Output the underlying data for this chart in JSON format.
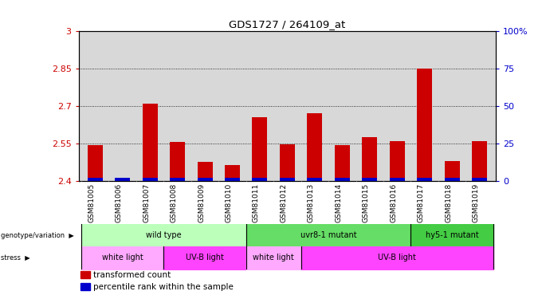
{
  "title": "GDS1727 / 264109_at",
  "samples": [
    "GSM81005",
    "GSM81006",
    "GSM81007",
    "GSM81008",
    "GSM81009",
    "GSM81010",
    "GSM81011",
    "GSM81012",
    "GSM81013",
    "GSM81014",
    "GSM81015",
    "GSM81016",
    "GSM81017",
    "GSM81018",
    "GSM81019"
  ],
  "red_values": [
    2.545,
    2.4,
    2.71,
    2.555,
    2.475,
    2.465,
    2.655,
    2.548,
    2.67,
    2.545,
    2.575,
    2.558,
    2.85,
    2.48,
    2.558
  ],
  "blue_pct": [
    4,
    8,
    8,
    10,
    5,
    5,
    6,
    7,
    7,
    6,
    9,
    7,
    9,
    4,
    6
  ],
  "ymin": 2.4,
  "ymax": 3.0,
  "y_ticks": [
    2.4,
    2.55,
    2.7,
    2.85,
    3.0
  ],
  "y_tick_labels": [
    "2.4",
    "2.55",
    "2.7",
    "2.85",
    "3"
  ],
  "right_y_ticks": [
    0,
    25,
    50,
    75,
    100
  ],
  "right_y_tick_labels": [
    "0",
    "25",
    "50",
    "75",
    "100%"
  ],
  "bar_width": 0.55,
  "red_color": "#cc0000",
  "blue_color": "#0000cc",
  "plot_bg": "#d8d8d8",
  "xtick_bg": "#c0c0c0",
  "geno_spans": [
    {
      "label": "wild type",
      "s": 0,
      "e": 5,
      "color": "#bbffbb"
    },
    {
      "label": "uvr8-1 mutant",
      "s": 6,
      "e": 11,
      "color": "#66dd66"
    },
    {
      "label": "hy5-1 mutant",
      "s": 12,
      "e": 14,
      "color": "#44cc44"
    }
  ],
  "stress_spans": [
    {
      "label": "white light",
      "s": 0,
      "e": 2,
      "color": "#ffaaff"
    },
    {
      "label": "UV-B light",
      "s": 3,
      "e": 5,
      "color": "#ff44ff"
    },
    {
      "label": "white light",
      "s": 6,
      "e": 7,
      "color": "#ffaaff"
    },
    {
      "label": "UV-B light",
      "s": 8,
      "e": 14,
      "color": "#ff44ff"
    }
  ],
  "legend_items": [
    {
      "label": "transformed count",
      "color": "#cc0000"
    },
    {
      "label": "percentile rank within the sample",
      "color": "#0000cc"
    }
  ]
}
